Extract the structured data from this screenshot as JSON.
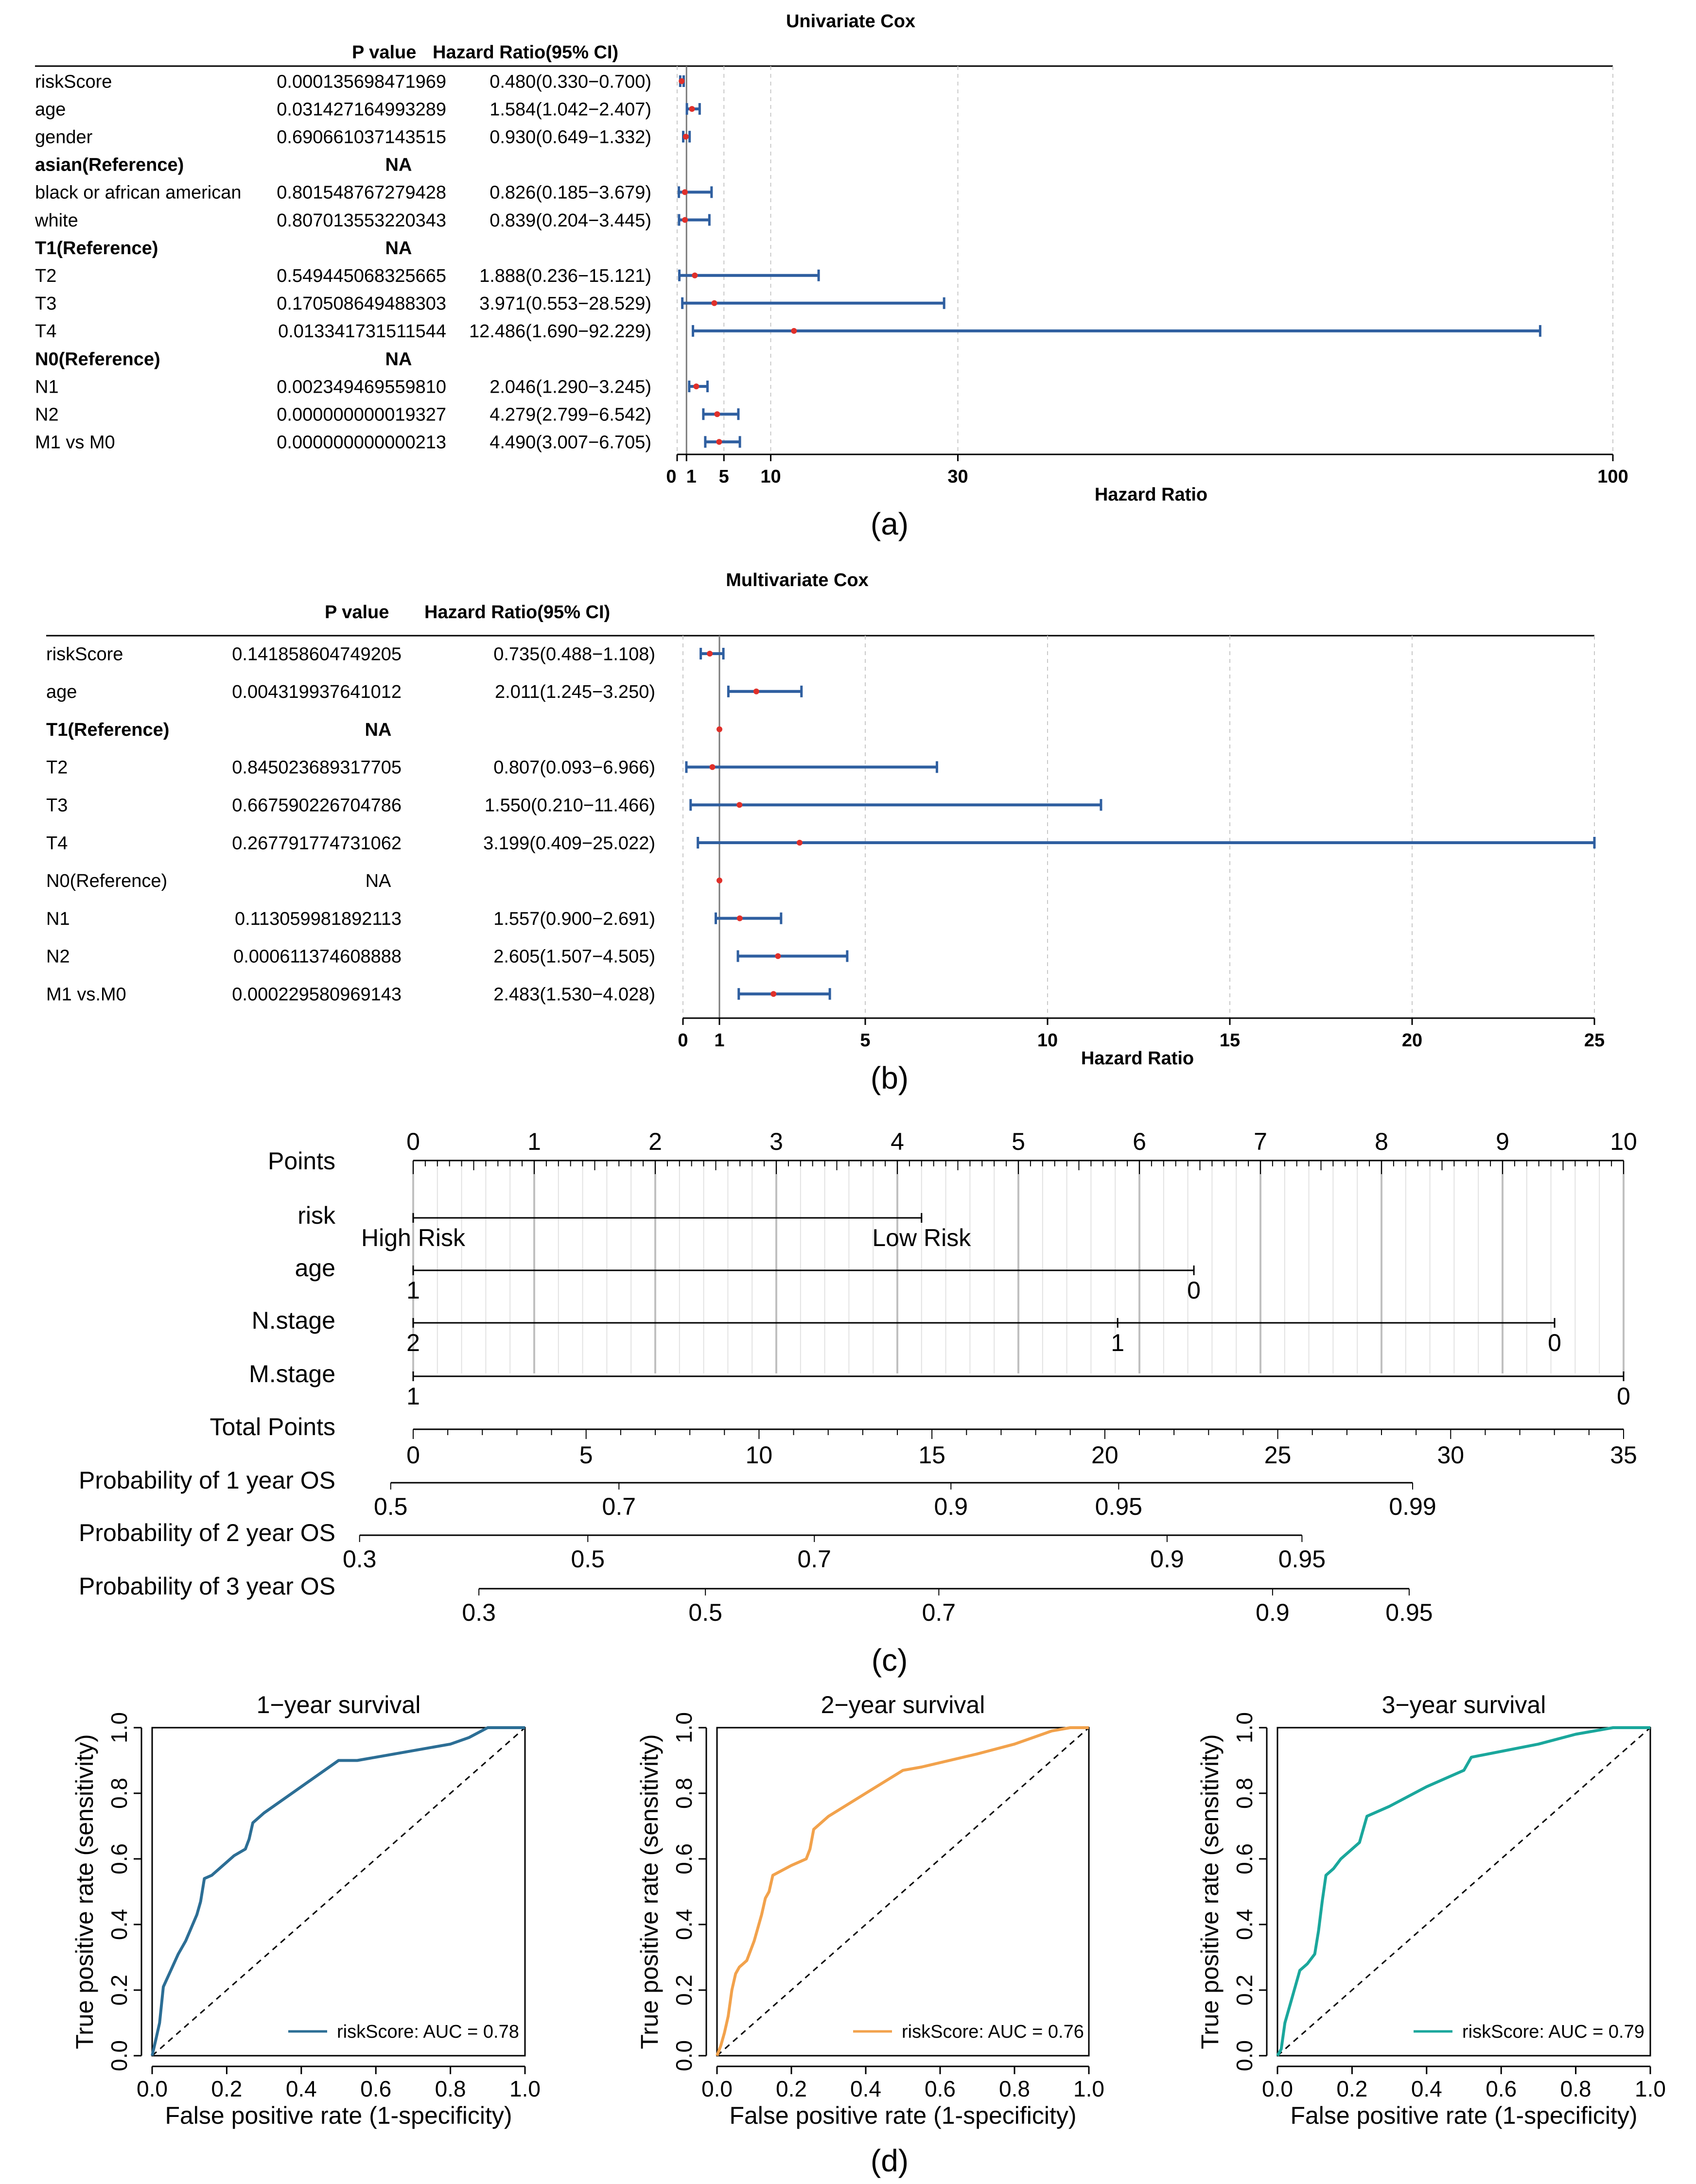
{
  "panels": {
    "a": {
      "label": "(a)",
      "chart_data": {
        "type": "forest",
        "title": "Univariate Cox",
        "col_p": "P value",
        "col_hr": "Hazard Ratio(95% CI)",
        "xlabel": "Hazard Ratio",
        "xticks": [
          "0",
          "1",
          "5",
          "10",
          "30",
          "100"
        ],
        "tick_values": [
          0,
          1,
          5,
          10,
          30,
          100
        ],
        "xlim": [
          0,
          100
        ],
        "ref_line": 1,
        "rows": [
          {
            "name": "riskScore",
            "p": "0.000135698471969",
            "hr_text": "0.480(0.330−0.700)",
            "hr": 0.48,
            "lo": 0.33,
            "hi": 0.7,
            "bold": false
          },
          {
            "name": "age",
            "p": "0.031427164993289",
            "hr_text": "1.584(1.042−2.407)",
            "hr": 1.584,
            "lo": 1.042,
            "hi": 2.407,
            "bold": false
          },
          {
            "name": "gender",
            "p": "0.690661037143515",
            "hr_text": "0.930(0.649−1.332)",
            "hr": 0.93,
            "lo": 0.649,
            "hi": 1.332,
            "bold": false
          },
          {
            "name": "asian(Reference)",
            "p": "NA",
            "hr_text": "",
            "hr": null,
            "lo": null,
            "hi": null,
            "bold": true
          },
          {
            "name": "black or african american",
            "p": "0.801548767279428",
            "hr_text": "0.826(0.185−3.679)",
            "hr": 0.826,
            "lo": 0.185,
            "hi": 3.679,
            "bold": false
          },
          {
            "name": "white",
            "p": "0.807013553220343",
            "hr_text": "0.839(0.204−3.445)",
            "hr": 0.839,
            "lo": 0.204,
            "hi": 3.445,
            "bold": false
          },
          {
            "name": "T1(Reference)",
            "p": "NA",
            "hr_text": "",
            "hr": null,
            "lo": null,
            "hi": null,
            "bold": true
          },
          {
            "name": "T2",
            "p": "0.549445068325665",
            "hr_text": "1.888(0.236−15.121)",
            "hr": 1.888,
            "lo": 0.236,
            "hi": 15.121,
            "bold": false
          },
          {
            "name": "T3",
            "p": "0.170508649488303",
            "hr_text": "3.971(0.553−28.529)",
            "hr": 3.971,
            "lo": 0.553,
            "hi": 28.529,
            "bold": false
          },
          {
            "name": "T4",
            "p": "0.013341731511544",
            "hr_text": "12.486(1.690−92.229)",
            "hr": 12.486,
            "lo": 1.69,
            "hi": 92.229,
            "bold": false
          },
          {
            "name": "N0(Reference)",
            "p": "NA",
            "hr_text": "",
            "hr": null,
            "lo": null,
            "hi": null,
            "bold": true
          },
          {
            "name": "N1",
            "p": "0.002349469559810",
            "hr_text": "2.046(1.290−3.245)",
            "hr": 2.046,
            "lo": 1.29,
            "hi": 3.245,
            "bold": false
          },
          {
            "name": "N2",
            "p": "0.000000000019327",
            "hr_text": "4.279(2.799−6.542)",
            "hr": 4.279,
            "lo": 2.799,
            "hi": 6.542,
            "bold": false
          },
          {
            "name": "M1 vs M0",
            "p": "0.000000000000213",
            "hr_text": "4.490(3.007−6.705)",
            "hr": 4.49,
            "lo": 3.007,
            "hi": 6.705,
            "bold": false
          }
        ]
      }
    },
    "b": {
      "label": "(b)",
      "chart_data": {
        "type": "forest",
        "title": "Multivariate Cox",
        "col_p": "P value",
        "col_hr": "Hazard Ratio(95% CI)",
        "xlabel": "Hazard Ratio",
        "xticks": [
          "0",
          "1",
          "5",
          "10",
          "15",
          "20",
          "25"
        ],
        "tick_values": [
          0,
          1,
          5,
          10,
          15,
          20,
          25
        ],
        "xlim": [
          0,
          25
        ],
        "ref_line": 1,
        "rows": [
          {
            "name": "riskScore",
            "p": "0.141858604749205",
            "hr_text": "0.735(0.488−1.108)",
            "hr": 0.735,
            "lo": 0.488,
            "hi": 1.108,
            "bold": false
          },
          {
            "name": "age",
            "p": "0.004319937641012",
            "hr_text": "2.011(1.245−3.250)",
            "hr": 2.011,
            "lo": 1.245,
            "hi": 3.25,
            "bold": false
          },
          {
            "name": "T1(Reference)",
            "p": "NA",
            "hr_text": "",
            "hr": 1,
            "lo": null,
            "hi": null,
            "bold": true
          },
          {
            "name": "T2",
            "p": "0.845023689317705",
            "hr_text": "0.807(0.093−6.966)",
            "hr": 0.807,
            "lo": 0.093,
            "hi": 6.966,
            "bold": false
          },
          {
            "name": "T3",
            "p": "0.667590226704786",
            "hr_text": "1.550(0.210−11.466)",
            "hr": 1.55,
            "lo": 0.21,
            "hi": 11.466,
            "bold": false
          },
          {
            "name": "T4",
            "p": "0.267791774731062",
            "hr_text": "3.199(0.409−25.022)",
            "hr": 3.199,
            "lo": 0.409,
            "hi": 25.022,
            "bold": false
          },
          {
            "name": "N0(Reference)",
            "p": "NA",
            "hr_text": "",
            "hr": 1,
            "lo": null,
            "hi": null,
            "bold": false
          },
          {
            "name": "N1",
            "p": "0.113059981892113",
            "hr_text": "1.557(0.900−2.691)",
            "hr": 1.557,
            "lo": 0.9,
            "hi": 2.691,
            "bold": false
          },
          {
            "name": "N2",
            "p": "0.000611374608888",
            "hr_text": "2.605(1.507−4.505)",
            "hr": 2.605,
            "lo": 1.507,
            "hi": 4.505,
            "bold": false
          },
          {
            "name": "M1 vs.M0",
            "p": "0.000229580969143",
            "hr_text": "2.483(1.530−4.028)",
            "hr": 2.483,
            "lo": 1.53,
            "hi": 4.028,
            "bold": false
          }
        ]
      }
    },
    "c": {
      "label": "(c)",
      "chart_data": {
        "type": "nomogram",
        "points_range": [
          0,
          10
        ],
        "total_points_range": [
          0,
          35
        ],
        "rows": [
          {
            "label": "Points",
            "kind": "points",
            "ticks": [
              {
                "v": 0,
                "t": "0"
              },
              {
                "v": 1,
                "t": "1"
              },
              {
                "v": 2,
                "t": "2"
              },
              {
                "v": 3,
                "t": "3"
              },
              {
                "v": 4,
                "t": "4"
              },
              {
                "v": 5,
                "t": "5"
              },
              {
                "v": 6,
                "t": "6"
              },
              {
                "v": 7,
                "t": "7"
              },
              {
                "v": 8,
                "t": "8"
              },
              {
                "v": 9,
                "t": "9"
              },
              {
                "v": 10,
                "t": "10"
              }
            ]
          },
          {
            "label": "risk",
            "kind": "var",
            "ticks": [
              {
                "v": 0,
                "t": "High Risk"
              },
              {
                "v": 4.2,
                "t": "Low Risk"
              }
            ]
          },
          {
            "label": "age",
            "kind": "var",
            "ticks": [
              {
                "v": 0,
                "t": "1"
              },
              {
                "v": 6.45,
                "t": "0"
              }
            ]
          },
          {
            "label": "N.stage",
            "kind": "var",
            "ticks": [
              {
                "v": 0,
                "t": "2"
              },
              {
                "v": 5.82,
                "t": "1"
              },
              {
                "v": 9.43,
                "t": "0"
              }
            ]
          },
          {
            "label": "M.stage",
            "kind": "var",
            "ticks": [
              {
                "v": 0,
                "t": "1"
              },
              {
                "v": 10,
                "t": "0"
              }
            ]
          },
          {
            "label": "Total Points",
            "kind": "total",
            "ticks": [
              {
                "v": 0,
                "t": "0"
              },
              {
                "v": 5,
                "t": "5"
              },
              {
                "v": 10,
                "t": "10"
              },
              {
                "v": 15,
                "t": "15"
              },
              {
                "v": 20,
                "t": "20"
              },
              {
                "v": 25,
                "t": "25"
              },
              {
                "v": 30,
                "t": "30"
              },
              {
                "v": 35,
                "t": "35"
              }
            ]
          },
          {
            "label": "Probability of 1 year OS",
            "kind": "prob",
            "ticks": [
              {
                "v": -0.65,
                "t": "0.5"
              },
              {
                "v": 5.95,
                "t": "0.7"
              },
              {
                "v": 15.55,
                "t": "0.9"
              },
              {
                "v": 20.4,
                "t": "0.95"
              },
              {
                "v": 28.9,
                "t": "0.99"
              }
            ]
          },
          {
            "label": "Probability of 2 year OS",
            "kind": "prob",
            "ticks": [
              {
                "v": -1.55,
                "t": "0.3"
              },
              {
                "v": 5.05,
                "t": "0.5"
              },
              {
                "v": 11.6,
                "t": "0.7"
              },
              {
                "v": 21.8,
                "t": "0.9"
              },
              {
                "v": 25.7,
                "t": "0.95"
              }
            ]
          },
          {
            "label": "Probability of 3 year OS",
            "kind": "prob",
            "ticks": [
              {
                "v": 1.9,
                "t": "0.3"
              },
              {
                "v": 8.45,
                "t": "0.5"
              },
              {
                "v": 15.2,
                "t": "0.7"
              },
              {
                "v": 24.85,
                "t": "0.9"
              },
              {
                "v": 28.8,
                "t": "0.95"
              }
            ]
          }
        ]
      }
    },
    "d": {
      "label": "(d)",
      "chart_data": [
        {
          "type": "line",
          "title": "1−year survival",
          "xlabel": "False positive rate (1-specificity)",
          "ylabel": "True positive rate (sensitivity)",
          "xlim": [
            0,
            1
          ],
          "ylim": [
            0,
            1
          ],
          "ticks": [
            "0.0",
            "0.2",
            "0.4",
            "0.6",
            "0.8",
            "1.0"
          ],
          "color": "#2c6e95",
          "legend": "riskScore: AUC = 0.78",
          "x": [
            0,
            0.01,
            0.02,
            0.03,
            0.05,
            0.07,
            0.09,
            0.12,
            0.13,
            0.14,
            0.16,
            0.19,
            0.22,
            0.25,
            0.26,
            0.27,
            0.28,
            0.3,
            0.4,
            0.5,
            0.55,
            0.8,
            0.85,
            0.9,
            0.95,
            1.0
          ],
          "y": [
            0,
            0.05,
            0.1,
            0.21,
            0.26,
            0.31,
            0.35,
            0.43,
            0.47,
            0.54,
            0.55,
            0.58,
            0.61,
            0.63,
            0.66,
            0.71,
            0.72,
            0.74,
            0.82,
            0.9,
            0.9,
            0.95,
            0.97,
            1.0,
            1.0,
            1.0
          ]
        },
        {
          "type": "line",
          "title": "2−year survival",
          "xlabel": "False positive rate (1-specificity)",
          "ylabel": "True positive rate (sensitivity)",
          "xlim": [
            0,
            1
          ],
          "ylim": [
            0,
            1
          ],
          "ticks": [
            "0.0",
            "0.2",
            "0.4",
            "0.6",
            "0.8",
            "1.0"
          ],
          "color": "#f2a24c",
          "legend": "riskScore: AUC = 0.76",
          "x": [
            0,
            0.01,
            0.02,
            0.03,
            0.04,
            0.05,
            0.06,
            0.08,
            0.1,
            0.12,
            0.13,
            0.14,
            0.15,
            0.2,
            0.24,
            0.25,
            0.26,
            0.3,
            0.4,
            0.5,
            0.55,
            0.7,
            0.8,
            0.9,
            0.95,
            1.0
          ],
          "y": [
            0,
            0.03,
            0.07,
            0.12,
            0.2,
            0.25,
            0.27,
            0.29,
            0.35,
            0.43,
            0.48,
            0.5,
            0.55,
            0.58,
            0.6,
            0.63,
            0.69,
            0.73,
            0.8,
            0.87,
            0.88,
            0.92,
            0.95,
            0.99,
            1.0,
            1.0
          ]
        },
        {
          "type": "line",
          "title": "3−year survival",
          "xlabel": "False positive rate (1-specificity)",
          "ylabel": "True positive rate (sensitivity)",
          "xlim": [
            0,
            1
          ],
          "ylim": [
            0,
            1
          ],
          "ticks": [
            "0.0",
            "0.2",
            "0.4",
            "0.6",
            "0.8",
            "1.0"
          ],
          "color": "#1aa79c",
          "legend": "riskScore: AUC = 0.79",
          "x": [
            0,
            0.01,
            0.02,
            0.04,
            0.06,
            0.08,
            0.1,
            0.11,
            0.12,
            0.13,
            0.15,
            0.17,
            0.2,
            0.22,
            0.23,
            0.24,
            0.26,
            0.3,
            0.4,
            0.5,
            0.52,
            0.7,
            0.8,
            0.9,
            0.95,
            1.0
          ],
          "y": [
            0,
            0.02,
            0.1,
            0.18,
            0.26,
            0.28,
            0.31,
            0.38,
            0.47,
            0.55,
            0.57,
            0.6,
            0.63,
            0.65,
            0.69,
            0.73,
            0.74,
            0.76,
            0.82,
            0.87,
            0.91,
            0.95,
            0.98,
            1.0,
            1.0,
            1.0
          ]
        }
      ]
    }
  }
}
